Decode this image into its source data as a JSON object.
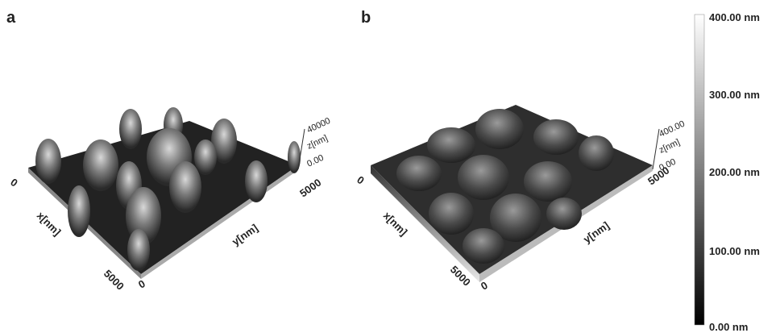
{
  "panels": [
    {
      "label": "a",
      "z_axis": {
        "label": "z[nm]",
        "ticks": [
          "40000",
          "0.00"
        ]
      },
      "x_axis": {
        "label": "x[nm]",
        "ticks": [
          "0",
          "5000"
        ]
      },
      "y_axis": {
        "label": "y[nm]",
        "ticks": [
          "0",
          "5000"
        ]
      }
    },
    {
      "label": "b",
      "z_axis": {
        "label": "z[nm]",
        "ticks": [
          "400.00",
          "0.00"
        ]
      },
      "x_axis": {
        "label": "x[nm]",
        "ticks": [
          "0",
          "5000"
        ]
      },
      "y_axis": {
        "label": "y[nm]",
        "ticks": [
          "0",
          "5000"
        ]
      }
    }
  ],
  "colorbar": {
    "labels": [
      "400.00 nm",
      "300.00 nm",
      "200.00 nm",
      "100.00 nm",
      "0.00 nm"
    ]
  }
}
